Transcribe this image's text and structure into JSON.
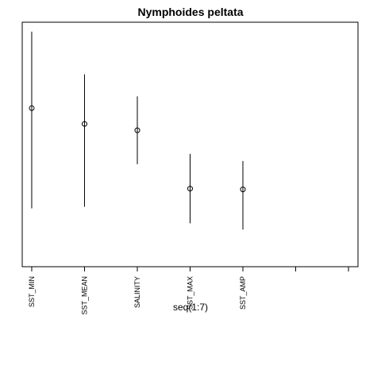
{
  "chart_data": {
    "type": "scatter",
    "title": "Nymphoides peltata",
    "xlabel": "seq(1:7)",
    "ylabel": "",
    "xlim": [
      0.82,
      7.18
    ],
    "ylim": [
      0,
      1
    ],
    "y_axis_shown": false,
    "grid": false,
    "legend": "none",
    "categories": [
      "SST_MIN",
      "SST_MEAN",
      "SALINITY",
      "SST_MAX",
      "SST_AMP",
      "",
      ""
    ],
    "points": [
      {
        "x": 1,
        "label": "SST_MIN",
        "y": 0.6484,
        "low": 0.2387,
        "high": 0.9613
      },
      {
        "x": 2,
        "label": "SST_MEAN",
        "y": 0.5839,
        "low": 0.2452,
        "high": 0.7871
      },
      {
        "x": 3,
        "label": "SALINITY",
        "y": 0.5581,
        "low": 0.4194,
        "high": 0.6968
      },
      {
        "x": 4,
        "label": "SST_MAX",
        "y": 0.3194,
        "low": 0.1774,
        "high": 0.4613
      },
      {
        "x": 5,
        "label": "SST_AMP",
        "y": 0.3161,
        "low": 0.1516,
        "high": 0.4323
      }
    ],
    "colors": {
      "marks": "#000000",
      "background": "#ffffff"
    }
  }
}
